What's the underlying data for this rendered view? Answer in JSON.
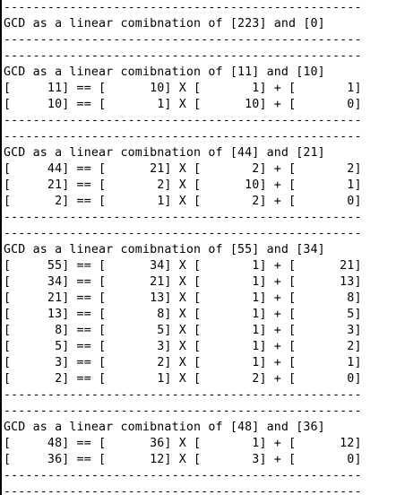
{
  "console": {
    "lines": [
      "-------------------------------------------------",
      "GCD as a linear comibnation of [223] and [0]",
      "-------------------------------------------------",
      "-------------------------------------------------",
      "GCD as a linear comibnation of [11] and [10]",
      "[     11] == [      10] X [       1] + [       1]",
      "[     10] == [       1] X [      10] + [       0]",
      "-------------------------------------------------",
      "-------------------------------------------------",
      "GCD as a linear comibnation of [44] and [21]",
      "[     44] == [      21] X [       2] + [       2]",
      "[     21] == [       2] X [      10] + [       1]",
      "[      2] == [       1] X [       2] + [       0]",
      "-------------------------------------------------",
      "-------------------------------------------------",
      "GCD as a linear comibnation of [55] and [34]",
      "[     55] == [      34] X [       1] + [      21]",
      "[     34] == [      21] X [       1] + [      13]",
      "[     21] == [      13] X [       1] + [       8]",
      "[     13] == [       8] X [       1] + [       5]",
      "[      8] == [       5] X [       1] + [       3]",
      "[      5] == [       3] X [       1] + [       2]",
      "[      3] == [       2] X [       1] + [       1]",
      "[      2] == [       1] X [       2] + [       0]",
      "-------------------------------------------------",
      "-------------------------------------------------",
      "GCD as a linear comibnation of [48] and [36]",
      "[     48] == [      36] X [       1] + [      12]",
      "[     36] == [      12] X [       3] + [       0]",
      "-------------------------------------------------",
      "-------------------------------------------------"
    ]
  }
}
